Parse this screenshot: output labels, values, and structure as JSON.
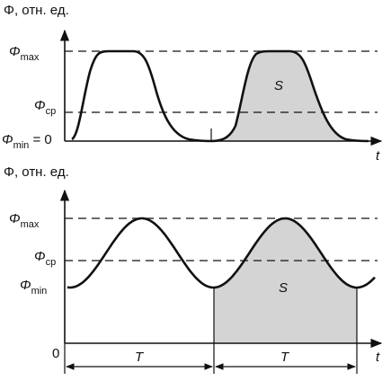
{
  "top_panel": {
    "axis_label": "Φ, отн. ед.",
    "max_label": {
      "symbol": "Φ",
      "sub": "max"
    },
    "cp_label": {
      "symbol": "Φ",
      "sub": "cp"
    },
    "min_label": {
      "symbol": "Φ",
      "sub": "min",
      "suffix": " = 0"
    },
    "area_label": "S",
    "t_label": "t"
  },
  "bottom_panel": {
    "axis_label": "Φ, отн. ед.",
    "max_label": {
      "symbol": "Φ",
      "sub": "max"
    },
    "cp_label": {
      "symbol": "Φ",
      "sub": "cp"
    },
    "min_label": {
      "symbol": "Φ",
      "sub": "min"
    },
    "zero_label": "0",
    "area_label": "S",
    "t_label": "t",
    "period_labels": [
      "T",
      "T"
    ]
  }
}
